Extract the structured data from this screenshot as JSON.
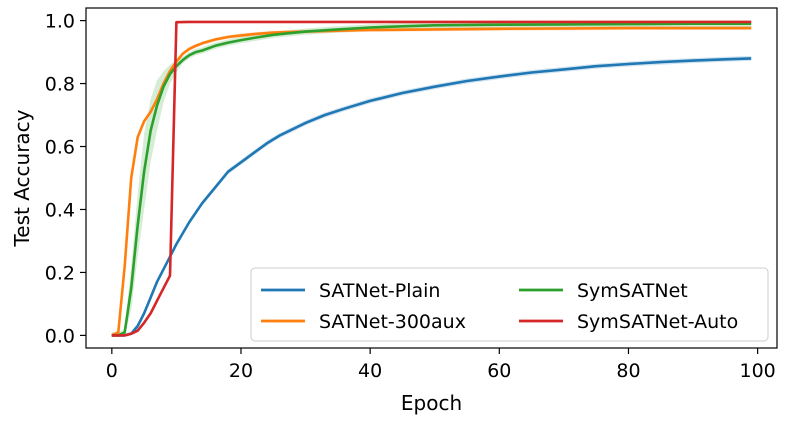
{
  "chart_data": {
    "type": "line",
    "xlabel": "Epoch",
    "ylabel": "Test Accuracy",
    "xlim": [
      -4,
      103
    ],
    "ylim": [
      -0.04,
      1.04
    ],
    "xticks": [
      0,
      20,
      40,
      60,
      80,
      100
    ],
    "yticks": [
      0.0,
      0.2,
      0.4,
      0.6,
      0.8,
      1.0
    ],
    "xtick_labels": [
      "0",
      "20",
      "40",
      "60",
      "80",
      "100"
    ],
    "ytick_labels": [
      "0.0",
      "0.2",
      "0.4",
      "0.6",
      "0.8",
      "1.0"
    ],
    "grid": false,
    "legend_position": "lower-right",
    "legend_columns": 2,
    "series": [
      {
        "name": "SATNet-Plain",
        "color": "#1f77b4",
        "points": [
          [
            0,
            0.0
          ],
          [
            1,
            0.0
          ],
          [
            2,
            0.0
          ],
          [
            3,
            0.005
          ],
          [
            4,
            0.03
          ],
          [
            5,
            0.07
          ],
          [
            6,
            0.12
          ],
          [
            7,
            0.17
          ],
          [
            8,
            0.21
          ],
          [
            9,
            0.25
          ],
          [
            10,
            0.29
          ],
          [
            12,
            0.36
          ],
          [
            14,
            0.42
          ],
          [
            16,
            0.47
          ],
          [
            18,
            0.52
          ],
          [
            20,
            0.55
          ],
          [
            22,
            0.58
          ],
          [
            24,
            0.61
          ],
          [
            26,
            0.635
          ],
          [
            28,
            0.655
          ],
          [
            30,
            0.675
          ],
          [
            33,
            0.7
          ],
          [
            36,
            0.72
          ],
          [
            40,
            0.745
          ],
          [
            45,
            0.77
          ],
          [
            50,
            0.79
          ],
          [
            55,
            0.808
          ],
          [
            60,
            0.822
          ],
          [
            65,
            0.835
          ],
          [
            70,
            0.845
          ],
          [
            75,
            0.855
          ],
          [
            80,
            0.862
          ],
          [
            85,
            0.868
          ],
          [
            90,
            0.873
          ],
          [
            95,
            0.877
          ],
          [
            99,
            0.88
          ]
        ],
        "band": 0.008
      },
      {
        "name": "SATNet-300aux",
        "color": "#ff7f0e",
        "points": [
          [
            0,
            0.0
          ],
          [
            1,
            0.01
          ],
          [
            2,
            0.22
          ],
          [
            3,
            0.5
          ],
          [
            4,
            0.63
          ],
          [
            5,
            0.68
          ],
          [
            6,
            0.71
          ],
          [
            7,
            0.75
          ],
          [
            8,
            0.8
          ],
          [
            9,
            0.84
          ],
          [
            10,
            0.87
          ],
          [
            11,
            0.895
          ],
          [
            12,
            0.91
          ],
          [
            13,
            0.92
          ],
          [
            14,
            0.928
          ],
          [
            16,
            0.94
          ],
          [
            18,
            0.948
          ],
          [
            20,
            0.953
          ],
          [
            22,
            0.957
          ],
          [
            25,
            0.962
          ],
          [
            30,
            0.965
          ],
          [
            35,
            0.968
          ],
          [
            40,
            0.97
          ],
          [
            50,
            0.972
          ],
          [
            60,
            0.974
          ],
          [
            70,
            0.975
          ],
          [
            80,
            0.976
          ],
          [
            90,
            0.976
          ],
          [
            99,
            0.976
          ]
        ],
        "band": 0.006
      },
      {
        "name": "SymSATNet",
        "color": "#2ca02c",
        "points": [
          [
            0,
            0.0
          ],
          [
            1,
            0.0
          ],
          [
            2,
            0.01
          ],
          [
            3,
            0.15
          ],
          [
            4,
            0.35
          ],
          [
            5,
            0.52
          ],
          [
            6,
            0.65
          ],
          [
            7,
            0.73
          ],
          [
            8,
            0.79
          ],
          [
            9,
            0.83
          ],
          [
            10,
            0.855
          ],
          [
            11,
            0.875
          ],
          [
            12,
            0.89
          ],
          [
            13,
            0.9
          ],
          [
            14,
            0.905
          ],
          [
            16,
            0.92
          ],
          [
            18,
            0.93
          ],
          [
            20,
            0.938
          ],
          [
            22,
            0.945
          ],
          [
            25,
            0.955
          ],
          [
            30,
            0.965
          ],
          [
            35,
            0.972
          ],
          [
            40,
            0.978
          ],
          [
            45,
            0.982
          ],
          [
            50,
            0.985
          ],
          [
            60,
            0.987
          ],
          [
            70,
            0.988
          ],
          [
            80,
            0.989
          ],
          [
            90,
            0.99
          ],
          [
            99,
            0.99
          ]
        ],
        "band": 0.01,
        "band_wide": [
          [
            3,
            0.07
          ],
          [
            4,
            0.1
          ],
          [
            5,
            0.12
          ],
          [
            6,
            0.1
          ],
          [
            7,
            0.08
          ],
          [
            8,
            0.05
          ],
          [
            9,
            0.03
          ],
          [
            10,
            0.02
          ]
        ]
      },
      {
        "name": "SymSATNet-Auto",
        "color": "#d62728",
        "points": [
          [
            0,
            0.0
          ],
          [
            1,
            0.0
          ],
          [
            2,
            0.0
          ],
          [
            3,
            0.005
          ],
          [
            4,
            0.015
          ],
          [
            5,
            0.04
          ],
          [
            6,
            0.07
          ],
          [
            7,
            0.11
          ],
          [
            8,
            0.15
          ],
          [
            9,
            0.19
          ],
          [
            10,
            0.995
          ],
          [
            12,
            0.996
          ],
          [
            20,
            0.996
          ],
          [
            30,
            0.996
          ],
          [
            40,
            0.996
          ],
          [
            50,
            0.996
          ],
          [
            60,
            0.996
          ],
          [
            70,
            0.996
          ],
          [
            80,
            0.996
          ],
          [
            90,
            0.996
          ],
          [
            99,
            0.996
          ]
        ],
        "band": 0.002
      }
    ]
  }
}
